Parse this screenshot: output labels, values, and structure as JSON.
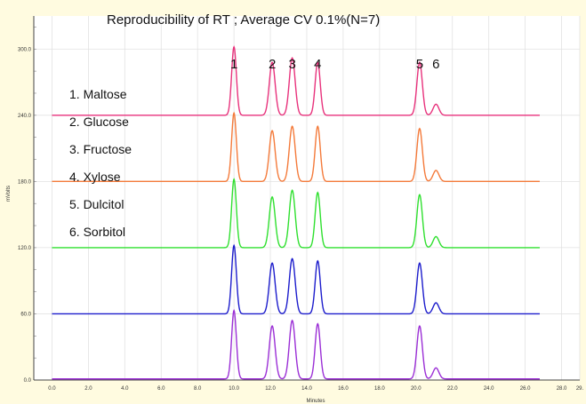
{
  "chart_data": {
    "type": "line",
    "title": "Reproducibility of RT ;   Average CV 0.1%(N=7)",
    "xlabel": "Minutes",
    "ylabel": "mVolts",
    "xlim": [
      -1,
      29
    ],
    "ylim": [
      0,
      330
    ],
    "x_ticks": [
      "0.0",
      "2.0",
      "4.0",
      "6.0",
      "8.0",
      "10.0",
      "12.0",
      "14.0",
      "16.0",
      "18.0",
      "20.0",
      "22.0",
      "24.0",
      "26.0",
      "28.0",
      "29."
    ],
    "y_ticks": [
      "0.0",
      "60.0",
      "120.0",
      "180.0",
      "240.0",
      "300.0"
    ],
    "grid": true,
    "peaks": [
      {
        "label": "1",
        "rt": 10.0
      },
      {
        "label": "2",
        "rt": 12.1
      },
      {
        "label": "3",
        "rt": 13.2
      },
      {
        "label": "4",
        "rt": 14.6
      },
      {
        "label": "5",
        "rt": 20.2
      },
      {
        "label": "6",
        "rt": 21.1
      }
    ],
    "series": [
      {
        "color": "#e8327c",
        "baseline": 240,
        "peak_heights": [
          62,
          48,
          52,
          48,
          48,
          10
        ]
      },
      {
        "color": "#f47a3a",
        "baseline": 180,
        "peak_heights": [
          62,
          46,
          50,
          50,
          48,
          10
        ]
      },
      {
        "color": "#2fe02f",
        "baseline": 120,
        "peak_heights": [
          62,
          46,
          52,
          50,
          48,
          10
        ]
      },
      {
        "color": "#1c1ccc",
        "baseline": 60,
        "peak_heights": [
          62,
          46,
          50,
          48,
          46,
          10
        ]
      },
      {
        "color": "#9b2fd6",
        "baseline": 1,
        "peak_heights": [
          62,
          48,
          53,
          50,
          48,
          10
        ]
      }
    ],
    "legend": [
      "1.  Maltose",
      "2.  Glucose",
      "3.  Fructose",
      "4.  Xylose",
      "5.  Dulcitol",
      "6.  Sorbitol"
    ]
  }
}
